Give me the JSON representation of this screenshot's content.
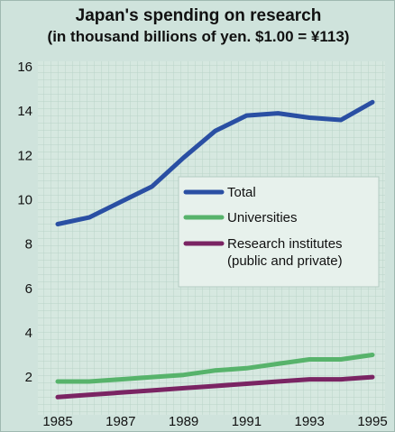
{
  "chart_data": {
    "type": "line",
    "title": "Japan's spending on research",
    "subtitle": "(in thousand billions of yen. $1.00 = ¥113)",
    "xlabel": "",
    "ylabel": "",
    "x": [
      1985,
      1986,
      1987,
      1988,
      1989,
      1990,
      1991,
      1992,
      1993,
      1994,
      1995
    ],
    "x_ticks": [
      "1985",
      "1987",
      "1989",
      "1991",
      "1993",
      "1995"
    ],
    "y_ticks": [
      "2",
      "4",
      "6",
      "8",
      "10",
      "12",
      "14",
      "16"
    ],
    "xlim": [
      1985,
      1995
    ],
    "ylim": [
      0.5,
      16
    ],
    "grid": true,
    "legend": "center-right",
    "series": [
      {
        "name": "Total",
        "color": "#2a4fa3",
        "values": [
          8.9,
          9.2,
          9.9,
          10.6,
          11.9,
          13.1,
          13.8,
          13.9,
          13.7,
          13.6,
          14.4
        ]
      },
      {
        "name": "Universities",
        "color": "#57b36b",
        "values": [
          1.8,
          1.8,
          1.9,
          2.0,
          2.1,
          2.3,
          2.4,
          2.6,
          2.8,
          2.8,
          3.0
        ]
      },
      {
        "name": "Research institutes (public and private)",
        "color": "#7a2463",
        "values": [
          1.1,
          1.2,
          1.3,
          1.4,
          1.5,
          1.6,
          1.7,
          1.8,
          1.9,
          1.9,
          2.0
        ]
      }
    ],
    "legend_lines": [
      [
        "Total"
      ],
      [
        "Universities"
      ],
      [
        "Research institutes",
        "(public and private)"
      ]
    ]
  }
}
